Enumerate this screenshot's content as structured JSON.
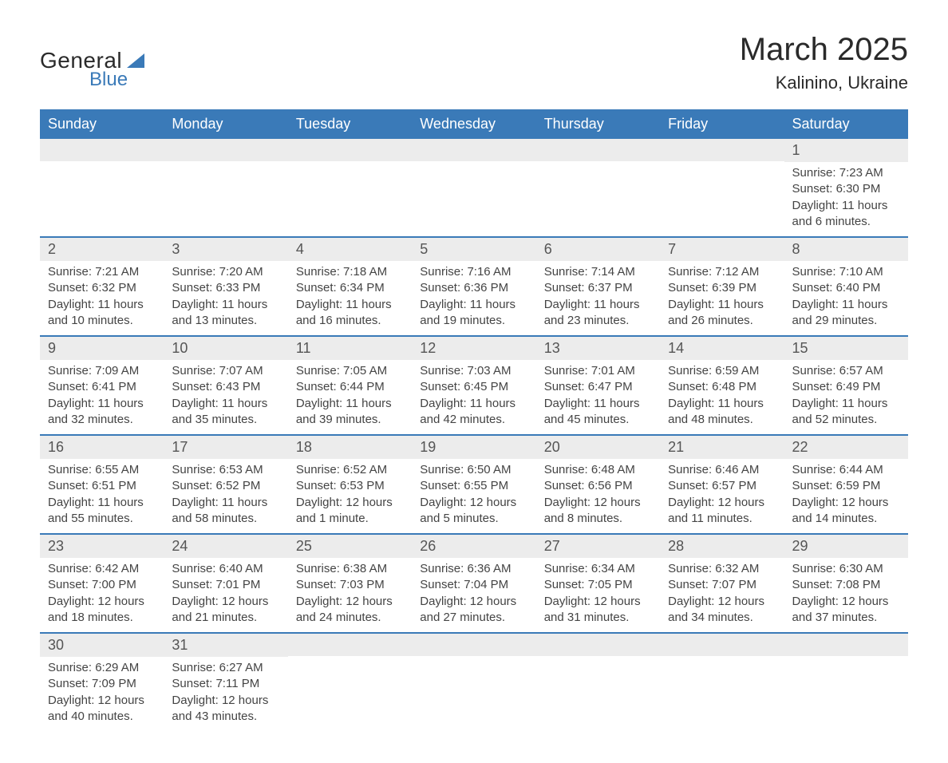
{
  "logo": {
    "text1": "General",
    "text2": "Blue"
  },
  "title": "March 2025",
  "location": "Kalinino, Ukraine",
  "colors": {
    "header_bg": "#3a7ab8",
    "header_text": "#ffffff",
    "row_border": "#3a7ab8",
    "daynum_bg": "#ececec",
    "body_text": "#444444",
    "page_bg": "#ffffff"
  },
  "daysOfWeek": [
    "Sunday",
    "Monday",
    "Tuesday",
    "Wednesday",
    "Thursday",
    "Friday",
    "Saturday"
  ],
  "weeks": [
    [
      {
        "empty": true
      },
      {
        "empty": true
      },
      {
        "empty": true
      },
      {
        "empty": true
      },
      {
        "empty": true
      },
      {
        "empty": true
      },
      {
        "n": "1",
        "sunrise": "Sunrise: 7:23 AM",
        "sunset": "Sunset: 6:30 PM",
        "daylight": "Daylight: 11 hours and 6 minutes."
      }
    ],
    [
      {
        "n": "2",
        "sunrise": "Sunrise: 7:21 AM",
        "sunset": "Sunset: 6:32 PM",
        "daylight": "Daylight: 11 hours and 10 minutes."
      },
      {
        "n": "3",
        "sunrise": "Sunrise: 7:20 AM",
        "sunset": "Sunset: 6:33 PM",
        "daylight": "Daylight: 11 hours and 13 minutes."
      },
      {
        "n": "4",
        "sunrise": "Sunrise: 7:18 AM",
        "sunset": "Sunset: 6:34 PM",
        "daylight": "Daylight: 11 hours and 16 minutes."
      },
      {
        "n": "5",
        "sunrise": "Sunrise: 7:16 AM",
        "sunset": "Sunset: 6:36 PM",
        "daylight": "Daylight: 11 hours and 19 minutes."
      },
      {
        "n": "6",
        "sunrise": "Sunrise: 7:14 AM",
        "sunset": "Sunset: 6:37 PM",
        "daylight": "Daylight: 11 hours and 23 minutes."
      },
      {
        "n": "7",
        "sunrise": "Sunrise: 7:12 AM",
        "sunset": "Sunset: 6:39 PM",
        "daylight": "Daylight: 11 hours and 26 minutes."
      },
      {
        "n": "8",
        "sunrise": "Sunrise: 7:10 AM",
        "sunset": "Sunset: 6:40 PM",
        "daylight": "Daylight: 11 hours and 29 minutes."
      }
    ],
    [
      {
        "n": "9",
        "sunrise": "Sunrise: 7:09 AM",
        "sunset": "Sunset: 6:41 PM",
        "daylight": "Daylight: 11 hours and 32 minutes."
      },
      {
        "n": "10",
        "sunrise": "Sunrise: 7:07 AM",
        "sunset": "Sunset: 6:43 PM",
        "daylight": "Daylight: 11 hours and 35 minutes."
      },
      {
        "n": "11",
        "sunrise": "Sunrise: 7:05 AM",
        "sunset": "Sunset: 6:44 PM",
        "daylight": "Daylight: 11 hours and 39 minutes."
      },
      {
        "n": "12",
        "sunrise": "Sunrise: 7:03 AM",
        "sunset": "Sunset: 6:45 PM",
        "daylight": "Daylight: 11 hours and 42 minutes."
      },
      {
        "n": "13",
        "sunrise": "Sunrise: 7:01 AM",
        "sunset": "Sunset: 6:47 PM",
        "daylight": "Daylight: 11 hours and 45 minutes."
      },
      {
        "n": "14",
        "sunrise": "Sunrise: 6:59 AM",
        "sunset": "Sunset: 6:48 PM",
        "daylight": "Daylight: 11 hours and 48 minutes."
      },
      {
        "n": "15",
        "sunrise": "Sunrise: 6:57 AM",
        "sunset": "Sunset: 6:49 PM",
        "daylight": "Daylight: 11 hours and 52 minutes."
      }
    ],
    [
      {
        "n": "16",
        "sunrise": "Sunrise: 6:55 AM",
        "sunset": "Sunset: 6:51 PM",
        "daylight": "Daylight: 11 hours and 55 minutes."
      },
      {
        "n": "17",
        "sunrise": "Sunrise: 6:53 AM",
        "sunset": "Sunset: 6:52 PM",
        "daylight": "Daylight: 11 hours and 58 minutes."
      },
      {
        "n": "18",
        "sunrise": "Sunrise: 6:52 AM",
        "sunset": "Sunset: 6:53 PM",
        "daylight": "Daylight: 12 hours and 1 minute."
      },
      {
        "n": "19",
        "sunrise": "Sunrise: 6:50 AM",
        "sunset": "Sunset: 6:55 PM",
        "daylight": "Daylight: 12 hours and 5 minutes."
      },
      {
        "n": "20",
        "sunrise": "Sunrise: 6:48 AM",
        "sunset": "Sunset: 6:56 PM",
        "daylight": "Daylight: 12 hours and 8 minutes."
      },
      {
        "n": "21",
        "sunrise": "Sunrise: 6:46 AM",
        "sunset": "Sunset: 6:57 PM",
        "daylight": "Daylight: 12 hours and 11 minutes."
      },
      {
        "n": "22",
        "sunrise": "Sunrise: 6:44 AM",
        "sunset": "Sunset: 6:59 PM",
        "daylight": "Daylight: 12 hours and 14 minutes."
      }
    ],
    [
      {
        "n": "23",
        "sunrise": "Sunrise: 6:42 AM",
        "sunset": "Sunset: 7:00 PM",
        "daylight": "Daylight: 12 hours and 18 minutes."
      },
      {
        "n": "24",
        "sunrise": "Sunrise: 6:40 AM",
        "sunset": "Sunset: 7:01 PM",
        "daylight": "Daylight: 12 hours and 21 minutes."
      },
      {
        "n": "25",
        "sunrise": "Sunrise: 6:38 AM",
        "sunset": "Sunset: 7:03 PM",
        "daylight": "Daylight: 12 hours and 24 minutes."
      },
      {
        "n": "26",
        "sunrise": "Sunrise: 6:36 AM",
        "sunset": "Sunset: 7:04 PM",
        "daylight": "Daylight: 12 hours and 27 minutes."
      },
      {
        "n": "27",
        "sunrise": "Sunrise: 6:34 AM",
        "sunset": "Sunset: 7:05 PM",
        "daylight": "Daylight: 12 hours and 31 minutes."
      },
      {
        "n": "28",
        "sunrise": "Sunrise: 6:32 AM",
        "sunset": "Sunset: 7:07 PM",
        "daylight": "Daylight: 12 hours and 34 minutes."
      },
      {
        "n": "29",
        "sunrise": "Sunrise: 6:30 AM",
        "sunset": "Sunset: 7:08 PM",
        "daylight": "Daylight: 12 hours and 37 minutes."
      }
    ],
    [
      {
        "n": "30",
        "sunrise": "Sunrise: 6:29 AM",
        "sunset": "Sunset: 7:09 PM",
        "daylight": "Daylight: 12 hours and 40 minutes."
      },
      {
        "n": "31",
        "sunrise": "Sunrise: 6:27 AM",
        "sunset": "Sunset: 7:11 PM",
        "daylight": "Daylight: 12 hours and 43 minutes."
      },
      {
        "empty": true
      },
      {
        "empty": true
      },
      {
        "empty": true
      },
      {
        "empty": true
      },
      {
        "empty": true
      }
    ]
  ]
}
